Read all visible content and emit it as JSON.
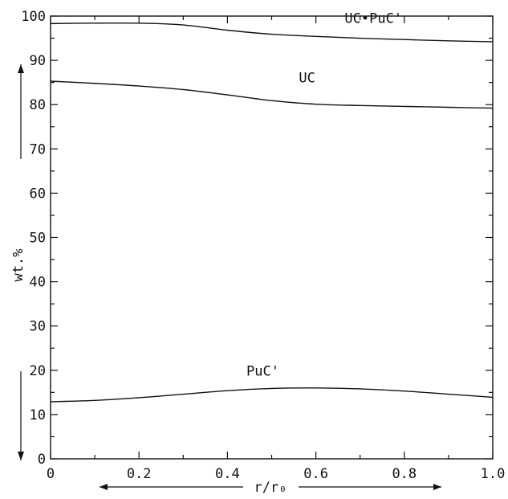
{
  "chart_data": {
    "type": "line",
    "title": "",
    "xlabel": "r/r₀",
    "ylabel": "wt.%",
    "xlim": [
      0,
      1.0
    ],
    "ylim": [
      0,
      100
    ],
    "x_ticks": [
      0,
      0.2,
      0.4,
      0.6,
      0.8,
      1.0
    ],
    "x_tick_labels": [
      "0",
      "0.2",
      "0.4",
      "0.6",
      "0.8",
      "1.0"
    ],
    "y_ticks": [
      0,
      10,
      20,
      30,
      40,
      50,
      60,
      70,
      80,
      90,
      100
    ],
    "y_tick_labels": [
      "0",
      "10",
      "20",
      "30",
      "40",
      "50",
      "60",
      "70",
      "80",
      "90",
      "100"
    ],
    "grid": false,
    "series": [
      {
        "name": "UC•PuC'",
        "x": [
          0,
          0.1,
          0.2,
          0.3,
          0.4,
          0.5,
          0.6,
          0.7,
          0.8,
          0.9,
          1.0
        ],
        "y": [
          98.3,
          98.4,
          98.4,
          98.0,
          96.8,
          95.9,
          95.4,
          95.0,
          94.7,
          94.4,
          94.2
        ]
      },
      {
        "name": "UC",
        "x": [
          0,
          0.1,
          0.2,
          0.3,
          0.4,
          0.5,
          0.6,
          0.7,
          0.8,
          0.9,
          1.0
        ],
        "y": [
          85.3,
          84.8,
          84.2,
          83.4,
          82.2,
          80.9,
          80.1,
          79.8,
          79.6,
          79.4,
          79.2
        ]
      },
      {
        "name": "PuC'",
        "x": [
          0,
          0.1,
          0.2,
          0.3,
          0.4,
          0.5,
          0.6,
          0.7,
          0.8,
          0.9,
          1.0
        ],
        "y": [
          12.9,
          13.2,
          13.8,
          14.6,
          15.4,
          15.9,
          16.0,
          15.8,
          15.3,
          14.6,
          13.9
        ]
      }
    ]
  }
}
